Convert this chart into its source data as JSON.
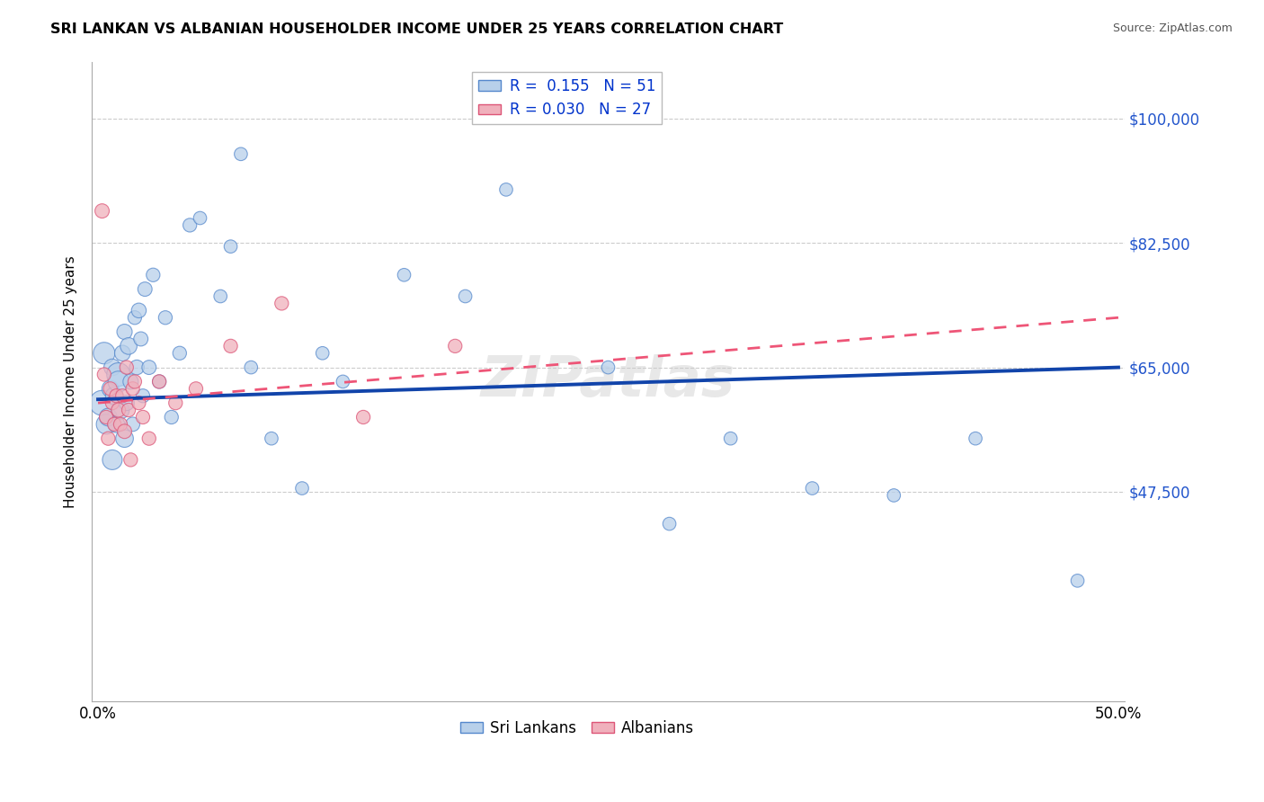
{
  "title": "SRI LANKAN VS ALBANIAN HOUSEHOLDER INCOME UNDER 25 YEARS CORRELATION CHART",
  "source": "Source: ZipAtlas.com",
  "ylabel": "Householder Income Under 25 years",
  "watermark": "ZIPatlas",
  "sri_lankan_R": 0.155,
  "sri_lankan_N": 51,
  "albanian_R": 0.03,
  "albanian_N": 27,
  "sri_lankan_fill": "#b8d0ea",
  "sri_lankan_edge": "#5588cc",
  "albanian_fill": "#f0b0bc",
  "albanian_edge": "#dd5577",
  "sri_lankan_line": "#1144aa",
  "albanian_line": "#ee5577",
  "bg_color": "#ffffff",
  "grid_color": "#cccccc",
  "xlim": [
    -0.003,
    0.503
  ],
  "ylim": [
    18000,
    108000
  ],
  "yticks": [
    47500,
    65000,
    82500,
    100000
  ],
  "ytick_labels": [
    "$47,500",
    "$65,000",
    "$82,500",
    "$100,000"
  ],
  "sl_trend_x": [
    0.0,
    0.5
  ],
  "sl_trend_y": [
    60500,
    65000
  ],
  "alb_trend_x": [
    0.0,
    0.5
  ],
  "alb_trend_y": [
    60000,
    72000
  ],
  "sl_x": [
    0.002,
    0.003,
    0.004,
    0.005,
    0.006,
    0.007,
    0.007,
    0.008,
    0.009,
    0.01,
    0.01,
    0.011,
    0.012,
    0.013,
    0.013,
    0.014,
    0.015,
    0.016,
    0.017,
    0.018,
    0.019,
    0.02,
    0.021,
    0.022,
    0.023,
    0.025,
    0.027,
    0.03,
    0.033,
    0.036,
    0.04,
    0.045,
    0.05,
    0.06,
    0.065,
    0.07,
    0.075,
    0.085,
    0.1,
    0.11,
    0.12,
    0.15,
    0.18,
    0.2,
    0.25,
    0.28,
    0.31,
    0.35,
    0.39,
    0.43,
    0.48
  ],
  "sl_y": [
    60000,
    67000,
    57000,
    58000,
    62000,
    52000,
    65000,
    61000,
    57000,
    64000,
    63000,
    59000,
    67000,
    55000,
    70000,
    60000,
    68000,
    63000,
    57000,
    72000,
    65000,
    73000,
    69000,
    61000,
    76000,
    65000,
    78000,
    63000,
    72000,
    58000,
    67000,
    85000,
    86000,
    75000,
    82000,
    95000,
    65000,
    55000,
    48000,
    67000,
    63000,
    78000,
    75000,
    90000,
    65000,
    43000,
    55000,
    48000,
    47000,
    55000,
    35000
  ],
  "sl_sizes": [
    400,
    300,
    250,
    200,
    180,
    250,
    180,
    200,
    180,
    350,
    280,
    200,
    160,
    200,
    150,
    150,
    180,
    150,
    130,
    120,
    140,
    140,
    130,
    120,
    130,
    130,
    120,
    120,
    120,
    120,
    120,
    120,
    110,
    110,
    110,
    110,
    110,
    110,
    110,
    110,
    110,
    110,
    110,
    110,
    110,
    110,
    110,
    110,
    110,
    110,
    110
  ],
  "alb_x": [
    0.002,
    0.003,
    0.004,
    0.005,
    0.006,
    0.007,
    0.008,
    0.009,
    0.01,
    0.011,
    0.012,
    0.013,
    0.014,
    0.015,
    0.016,
    0.017,
    0.018,
    0.02,
    0.022,
    0.025,
    0.03,
    0.038,
    0.048,
    0.065,
    0.09,
    0.13,
    0.175
  ],
  "alb_y": [
    87000,
    64000,
    58000,
    55000,
    62000,
    60000,
    57000,
    61000,
    59000,
    57000,
    61000,
    56000,
    65000,
    59000,
    52000,
    62000,
    63000,
    60000,
    58000,
    55000,
    63000,
    60000,
    62000,
    68000,
    74000,
    58000,
    68000
  ],
  "alb_sizes": [
    130,
    120,
    120,
    120,
    120,
    120,
    120,
    120,
    130,
    120,
    120,
    130,
    120,
    120,
    120,
    120,
    120,
    120,
    120,
    120,
    120,
    120,
    120,
    120,
    120,
    120,
    120
  ]
}
